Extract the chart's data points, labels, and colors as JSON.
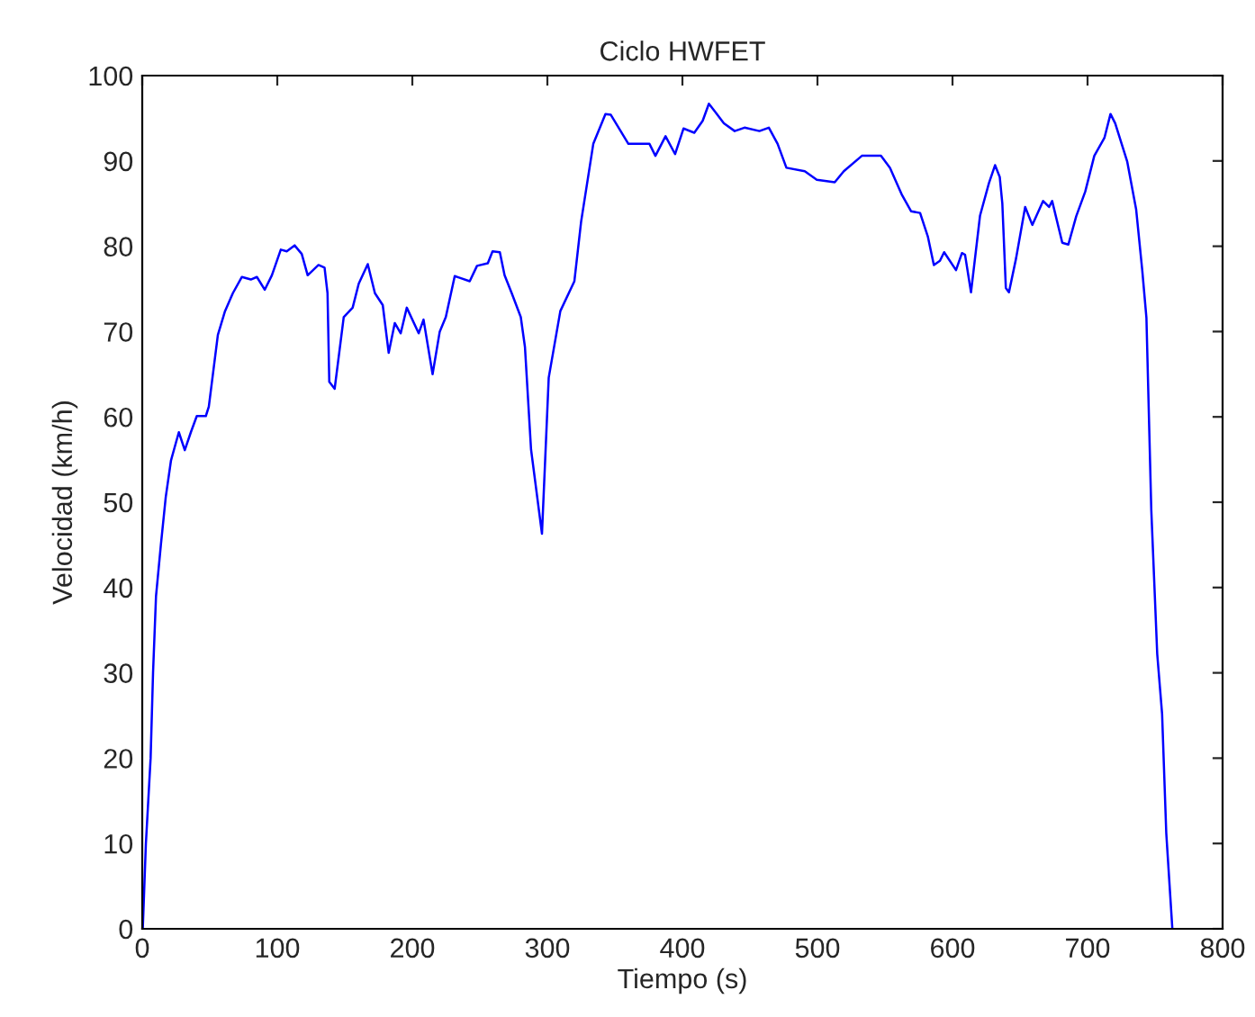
{
  "chart_data": {
    "type": "line",
    "title": "Ciclo HWFET",
    "xlabel": "Tiempo (s)",
    "ylabel": "Velocidad (km/h)",
    "xlim": [
      0,
      800
    ],
    "xticks": [
      0,
      100,
      200,
      300,
      400,
      500,
      600,
      700,
      800
    ],
    "ylim": [
      0,
      100
    ],
    "yticks": [
      0,
      10,
      20,
      30,
      40,
      50,
      60,
      70,
      80,
      90,
      100
    ],
    "grid": false,
    "legend": false,
    "marker": "none",
    "line_style": "solid",
    "series": [
      {
        "color": "#0000ff",
        "x": [
          0.4,
          2.7,
          6.2,
          8,
          10.2,
          13.8,
          17.4,
          21.3,
          27.1,
          31.5,
          36,
          40.4,
          47.1,
          49.3,
          56,
          61.3,
          67.1,
          73.8,
          80.4,
          84.9,
          90.7,
          96,
          102.6,
          107,
          112.8,
          118.1,
          122.5,
          130.5,
          135,
          137.2,
          138.5,
          142.5,
          149.2,
          155.8,
          160.3,
          167,
          172.3,
          178.1,
          182.5,
          187,
          191.4,
          195.9,
          204.7,
          208.3,
          215,
          220.3,
          224.8,
          231.4,
          242.5,
          247.9,
          255.9,
          259.4,
          264.8,
          268.3,
          273.6,
          280.3,
          283.4,
          287.9,
          296,
          301,
          309.6,
          320,
          325,
          334,
          343,
          347,
          360,
          375.6,
          380,
          387.5,
          394.6,
          400.8,
          408.8,
          415,
          419.6,
          424,
          430.7,
          438.7,
          446,
          457,
          464,
          470.5,
          477,
          490.6,
          499.5,
          512.8,
          519.5,
          532.9,
          547,
          553.7,
          562.6,
          569.3,
          576,
          581.8,
          586.2,
          590.7,
          593.8,
          602.6,
          607,
          609.3,
          613.7,
          620.4,
          627,
          631.5,
          635,
          636.9,
          639.5,
          641.8,
          647.1,
          653.8,
          659.1,
          667.1,
          671.5,
          673.8,
          681.3,
          685.8,
          691.6,
          698.3,
          705,
          712.5,
          717,
          720.5,
          729.4,
          736,
          740.5,
          743.6,
          747.2,
          751.6,
          755.2,
          758.3,
          762.8
        ],
        "values": [
          0,
          10,
          20,
          30,
          39,
          45,
          50.6,
          54.9,
          58.2,
          56.1,
          58.2,
          60.1,
          60.1,
          61.2,
          69.6,
          72.4,
          74.5,
          76.4,
          76.1,
          76.4,
          74.9,
          76.6,
          79.6,
          79.4,
          80.1,
          79.1,
          76.6,
          77.8,
          77.5,
          74.5,
          64.1,
          63.3,
          71.7,
          72.8,
          75.6,
          77.9,
          74.5,
          73.1,
          67.5,
          71,
          69.8,
          72.8,
          69.8,
          71.4,
          65,
          70,
          71.7,
          76.5,
          75.9,
          77.7,
          78,
          79.4,
          79.3,
          76.6,
          74.5,
          71.7,
          68.2,
          56.2,
          46.3,
          64.6,
          72.4,
          75.9,
          82.9,
          92,
          95.5,
          95.4,
          92,
          92,
          90.6,
          92.9,
          90.8,
          93.8,
          93.3,
          94.7,
          96.7,
          95.8,
          94.4,
          93.5,
          93.9,
          93.5,
          93.9,
          92,
          89.2,
          88.8,
          87.8,
          87.5,
          88.8,
          90.6,
          90.6,
          89.2,
          86,
          84.1,
          83.9,
          81.1,
          77.8,
          78.3,
          79.3,
          77.2,
          79.2,
          79,
          74.6,
          83.6,
          87.4,
          89.5,
          88.1,
          85,
          75.1,
          74.6,
          78.6,
          84.6,
          82.5,
          85.3,
          84.6,
          85.3,
          80.4,
          80.2,
          83.5,
          86.4,
          90.6,
          92.7,
          95.5,
          94.4,
          89.9,
          84.3,
          77.2,
          71.6,
          49.1,
          32.2,
          25.2,
          11.2,
          0
        ]
      }
    ]
  }
}
